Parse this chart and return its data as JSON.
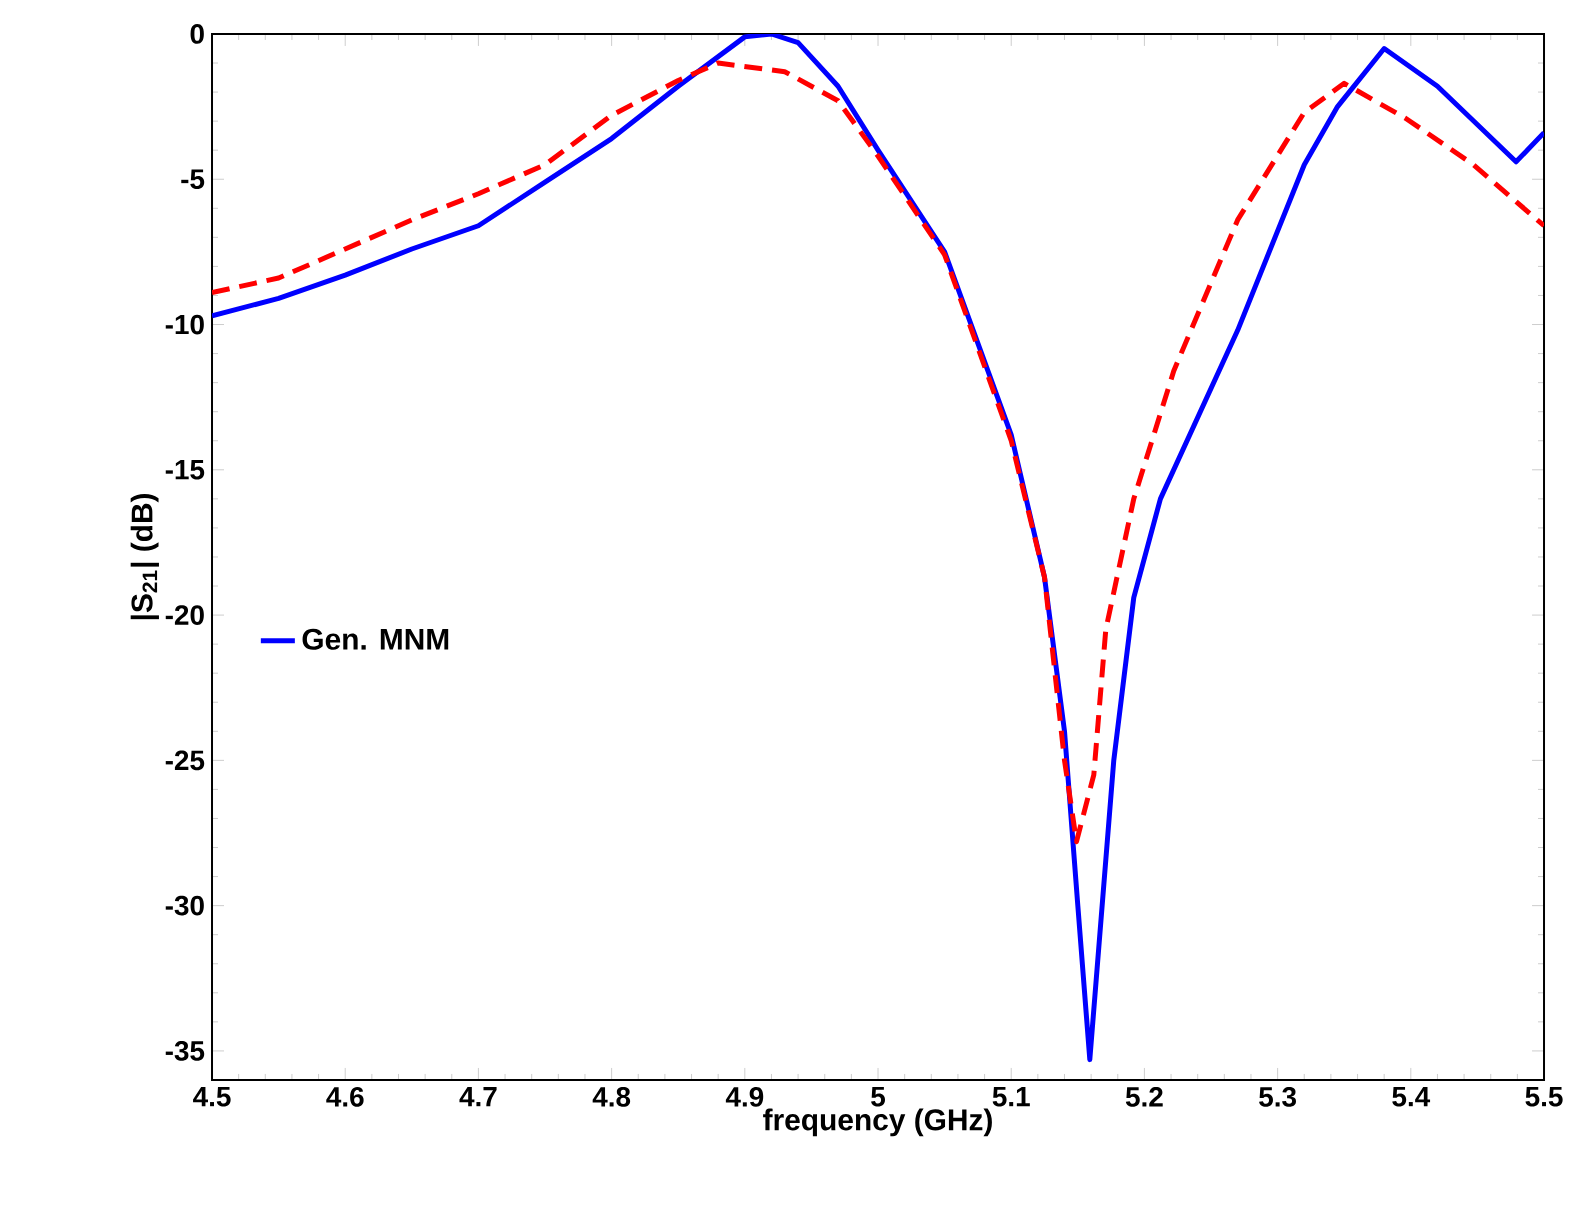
{
  "chart_data": {
    "type": "line",
    "xlabel": "frequency (GHz)",
    "ylabel": "|S$_{21}$| (dB)",
    "xlim": [
      4.5,
      5.5
    ],
    "ylim": [
      -36,
      0
    ],
    "xticks": [
      4.5,
      4.6,
      4.7,
      4.8,
      4.9,
      5,
      5.1,
      5.2,
      5.3,
      5.4,
      5.5
    ],
    "yticks": [
      -35,
      -30,
      -25,
      -20,
      -15,
      -10,
      -5,
      0
    ],
    "grid": false,
    "legend": "left",
    "series": [
      {
        "name": "Gen. MNM",
        "color": "#0000ff",
        "line_style": "solid",
        "x": [
          4.5,
          4.55,
          4.6,
          4.65,
          4.7,
          4.75,
          4.8,
          4.85,
          4.9,
          4.92,
          4.94,
          4.97,
          5.0,
          5.05,
          5.1,
          5.125,
          5.14,
          5.15,
          5.159,
          5.177,
          5.192,
          5.212,
          5.27,
          5.32,
          5.345,
          5.38,
          5.42,
          5.479,
          5.5
        ],
        "values": [
          -9.7,
          -9.1,
          -8.3,
          -7.4,
          -6.6,
          -5.1,
          -3.6,
          -1.8,
          -0.1,
          0,
          -0.3,
          -1.8,
          -4,
          -7.5,
          -13.8,
          -18.7,
          -24,
          -30,
          -35.3,
          -25,
          -19.4,
          -16,
          -10.2,
          -4.5,
          -2.5,
          -0.5,
          -1.8,
          -4.4,
          -3.4
        ]
      },
      {
        "color": "#ff0000",
        "line_style": "dashed",
        "x": [
          4.5,
          4.55,
          4.6,
          4.65,
          4.7,
          4.75,
          4.8,
          4.85,
          4.88,
          4.93,
          4.95,
          4.97,
          5.0,
          5.05,
          5.1,
          5.125,
          5.14,
          5.149,
          5.162,
          5.171,
          5.192,
          5.222,
          5.27,
          5.32,
          5.35,
          5.396,
          5.447,
          5.5
        ],
        "values": [
          -8.9,
          -8.4,
          -7.4,
          -6.4,
          -5.5,
          -4.5,
          -2.8,
          -1.6,
          -1.0,
          -1.3,
          -1.8,
          -2.3,
          -4.2,
          -7.6,
          -14,
          -18.7,
          -25,
          -27.8,
          -25.5,
          -20.5,
          -16,
          -11.6,
          -6.4,
          -2.7,
          -1.7,
          -2.9,
          -4.5,
          -6.6
        ]
      }
    ]
  }
}
